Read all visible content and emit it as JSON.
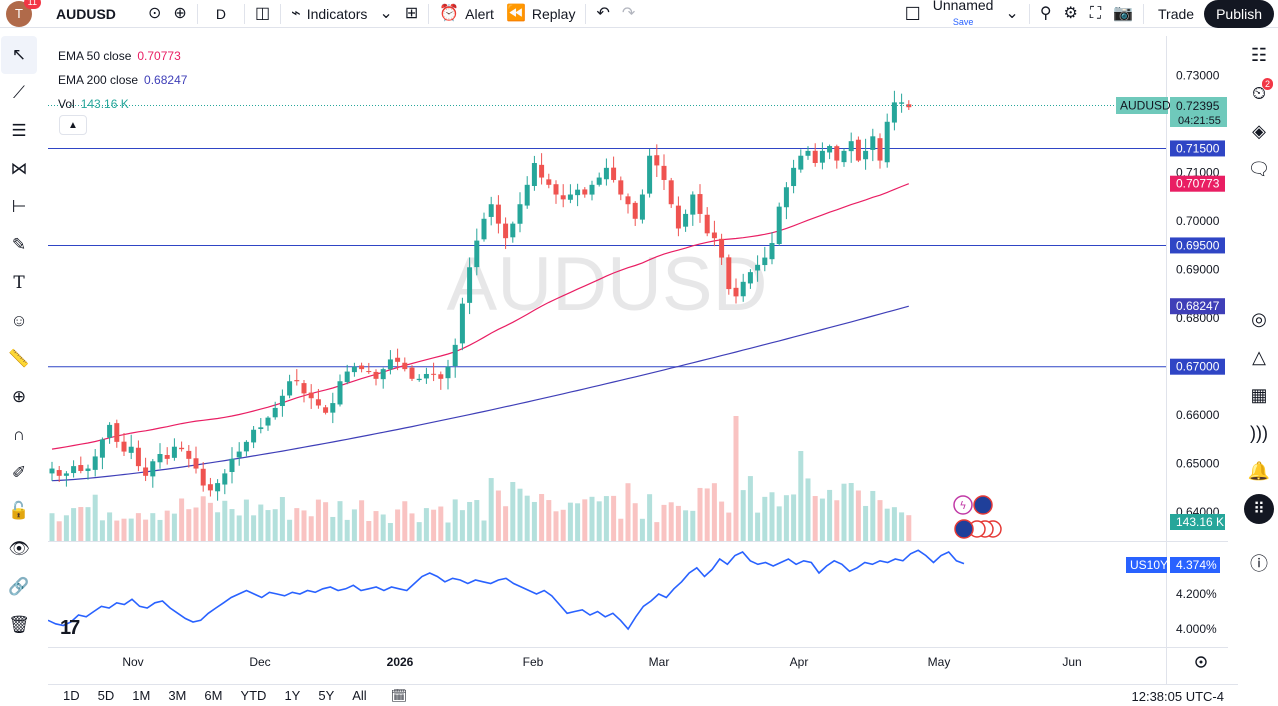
{
  "topbar": {
    "avatar_letter": "T",
    "notif_count": "11",
    "symbol": "AUDUSD",
    "interval": "D",
    "indicators_label": "Indicators",
    "alert_label": "Alert",
    "replay_label": "Replay",
    "layout_name": "Unnamed",
    "save_label": "Save",
    "trade_label": "Trade",
    "publish_label": "Publish"
  },
  "legend": {
    "ema50_label": "EMA 50 close",
    "ema50_value": "0.70773",
    "ema200_label": "EMA 200 close",
    "ema200_value": "0.68247",
    "vol_label": "Vol",
    "vol_value": "143.16 K"
  },
  "watermark": "AUDUSD",
  "price_axis": {
    "ticks": [
      "0.73000",
      "0.71000",
      "0.70000",
      "0.69000",
      "0.68000",
      "0.66000",
      "0.65000",
      "0.64000"
    ],
    "symbol_tag": "AUDUSD",
    "last_price": "0.72395",
    "countdown": "04:21:55",
    "hlines": [
      "0.71500",
      "0.69500",
      "0.67000"
    ],
    "ema50_tag": "0.70773",
    "ema200_tag": "0.68247",
    "vol_tag": "143.16 K"
  },
  "lower_pane": {
    "symbol_tag": "US10Y",
    "value_tag": "4.374%",
    "ticks": [
      "4.200%",
      "4.000%"
    ]
  },
  "time_axis": [
    "Nov",
    "Dec",
    "2026",
    "Feb",
    "Mar",
    "Apr",
    "May",
    "Jun"
  ],
  "bottombar": {
    "ranges": [
      "1D",
      "5D",
      "1M",
      "3M",
      "6M",
      "YTD",
      "1Y",
      "5Y",
      "All"
    ],
    "clock": "12:38:05 UTC-4"
  },
  "right_toolbar_badge": "2",
  "colors": {
    "up": "#26a69a",
    "down": "#ef5350",
    "ema50": "#e91e63",
    "ema200": "#3f3fb8",
    "hline": "#2f45c5",
    "us10y": "#2962ff",
    "last_price_tag": "#6fc9bb"
  },
  "chart_data": [
    {
      "type": "candlestick",
      "symbol": "AUDUSD",
      "interval": "D",
      "x_labels": [
        "Nov",
        "Dec",
        "2026",
        "Feb",
        "Mar",
        "Apr",
        "May",
        "Jun"
      ],
      "ylim": [
        0.635,
        0.733
      ],
      "last_close": 0.72395,
      "horizontal_lines": [
        0.715,
        0.695,
        0.67
      ],
      "ema50_last": 0.70773,
      "ema200_last": 0.68247,
      "volume_last": "143.16 K",
      "closes": [
        0.649,
        0.6475,
        0.648,
        0.6495,
        0.6485,
        0.649,
        0.6515,
        0.655,
        0.658,
        0.6545,
        0.6525,
        0.6535,
        0.6495,
        0.6475,
        0.6505,
        0.652,
        0.651,
        0.6535,
        0.653,
        0.651,
        0.649,
        0.6455,
        0.6445,
        0.646,
        0.648,
        0.651,
        0.6525,
        0.6545,
        0.657,
        0.6575,
        0.6595,
        0.6615,
        0.664,
        0.667,
        0.667,
        0.6645,
        0.6635,
        0.662,
        0.6605,
        0.6625,
        0.667,
        0.669,
        0.67,
        0.6695,
        0.669,
        0.6675,
        0.6695,
        0.6715,
        0.671,
        0.6695,
        0.6675,
        0.6675,
        0.6685,
        0.6685,
        0.6675,
        0.67,
        0.6745,
        0.683,
        0.6905,
        0.696,
        0.7005,
        0.7035,
        0.6995,
        0.6965,
        0.6995,
        0.7035,
        0.7075,
        0.712,
        0.709,
        0.7075,
        0.7055,
        0.7045,
        0.7055,
        0.7065,
        0.7055,
        0.7075,
        0.709,
        0.711,
        0.7085,
        0.7055,
        0.7035,
        0.7005,
        0.7055,
        0.7135,
        0.7115,
        0.7085,
        0.7035,
        0.6985,
        0.7015,
        0.7055,
        0.7015,
        0.6975,
        0.6965,
        0.6925,
        0.686,
        0.6845,
        0.6875,
        0.6895,
        0.691,
        0.6925,
        0.6955,
        0.703,
        0.707,
        0.711,
        0.7135,
        0.7145,
        0.712,
        0.7145,
        0.7155,
        0.7125,
        0.7145,
        0.7165,
        0.7125,
        0.7145,
        0.7175,
        0.7125,
        0.7205,
        0.7245,
        0.7245,
        0.7235
      ]
    },
    {
      "type": "bar",
      "name": "Vol",
      "last_value": "143.16 K"
    },
    {
      "type": "line",
      "name": "US10Y",
      "ylim": [
        3.94,
        4.5
      ],
      "last_value": 4.374,
      "values": [
        4.05,
        4.03,
        4.02,
        4.04,
        4.08,
        4.07,
        4.1,
        4.13,
        4.12,
        4.15,
        4.14,
        4.17,
        4.13,
        4.12,
        4.15,
        4.16,
        4.12,
        4.09,
        4.06,
        4.04,
        4.05,
        4.09,
        4.12,
        4.15,
        4.18,
        4.2,
        4.22,
        4.2,
        4.18,
        4.21,
        4.2,
        4.19,
        4.21,
        4.2,
        4.22,
        4.21,
        4.23,
        4.24,
        4.22,
        4.23,
        4.25,
        4.22,
        4.23,
        4.24,
        4.22,
        4.24,
        4.23,
        4.22,
        4.26,
        4.3,
        4.32,
        4.3,
        4.27,
        4.29,
        4.28,
        4.26,
        4.28,
        4.27,
        4.26,
        4.28,
        4.29,
        4.26,
        4.24,
        4.22,
        4.2,
        4.22,
        4.19,
        4.14,
        4.09,
        4.1,
        4.11,
        4.08,
        4.1,
        4.07,
        4.09,
        4.05,
        4.0,
        4.07,
        4.13,
        4.16,
        4.2,
        4.18,
        4.23,
        4.27,
        4.32,
        4.35,
        4.3,
        4.34,
        4.4,
        4.37,
        4.42,
        4.44,
        4.39,
        4.37,
        4.38,
        4.36,
        4.38,
        4.4,
        4.37,
        4.39,
        4.38,
        4.32,
        4.36,
        4.39,
        4.37,
        4.33,
        4.35,
        4.38,
        4.37,
        4.39,
        4.38,
        4.4,
        4.39,
        4.43,
        4.45,
        4.42,
        4.38,
        4.42,
        4.44,
        4.39,
        4.374
      ]
    }
  ]
}
